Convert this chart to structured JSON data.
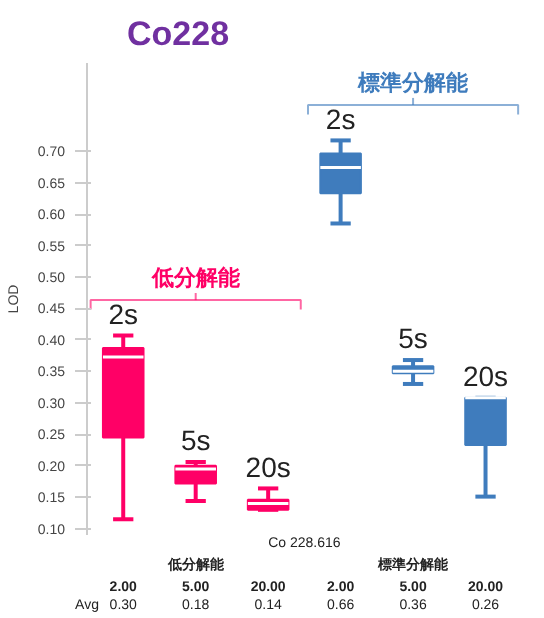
{
  "chart_data": {
    "type": "box",
    "title": "Co228",
    "ylabel": "LOD",
    "xlabel": "Co 228.616",
    "categories": [
      "2.00",
      "5.00",
      "20.00",
      "2.00",
      "5.00",
      "20.00"
    ],
    "colors": [
      "#ff0066",
      "#ff0066",
      "#ff0066",
      "#3f7cbd",
      "#3f7cbd",
      "#3f7cbd"
    ],
    "boxes": [
      {
        "low": 0.115,
        "q1": 0.245,
        "median": 0.373,
        "q3": 0.387,
        "high": 0.407
      },
      {
        "low": 0.144,
        "q1": 0.172,
        "median": 0.195,
        "q3": 0.2,
        "high": 0.206
      },
      {
        "low": 0.13,
        "q1": 0.13,
        "median": 0.14,
        "q3": 0.146,
        "high": 0.164
      },
      {
        "low": 0.585,
        "q1": 0.633,
        "median": 0.674,
        "q3": 0.696,
        "high": 0.717
      },
      {
        "low": 0.33,
        "q1": 0.347,
        "median": 0.35,
        "q3": 0.358,
        "high": 0.368
      },
      {
        "low": 0.151,
        "q1": 0.233,
        "median": 0.308,
        "q3": 0.308,
        "high": 0.308
      }
    ],
    "annotations": [
      "2s",
      "5s",
      "20s",
      "2s",
      "5s",
      "20s",
      "低分解能",
      "標準分解能",
      "低分解能",
      "標準分解能",
      "Avg",
      "0.30",
      "0.18",
      "0.14",
      "0.66",
      "0.36",
      "0.26"
    ],
    "ylim": [
      0.09,
      0.84
    ],
    "yticks": [
      {
        "value": 0.1,
        "label": "0.10"
      },
      {
        "value": 0.15,
        "label": "0.15"
      },
      {
        "value": 0.2,
        "label": "0.20"
      },
      {
        "value": 0.25,
        "label": "0.25"
      },
      {
        "value": 0.3,
        "label": "0.30"
      },
      {
        "value": 0.35,
        "label": "0.35"
      },
      {
        "value": 0.4,
        "label": "0.40"
      },
      {
        "value": 0.45,
        "label": "0.45"
      },
      {
        "value": 0.5,
        "label": "0.50"
      },
      {
        "value": 0.55,
        "label": "0.55"
      },
      {
        "value": 0.6,
        "label": "0.60"
      },
      {
        "value": 0.65,
        "label": "0.65"
      },
      {
        "value": 0.7,
        "label": "0.70"
      }
    ],
    "grid": false
  }
}
